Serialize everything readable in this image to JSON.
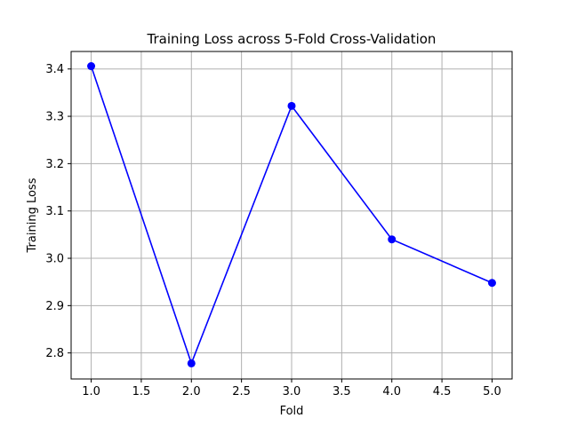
{
  "chart_data": {
    "type": "line",
    "title": "Training Loss across 5-Fold Cross-Validation",
    "xlabel": "Fold",
    "ylabel": "Training Loss",
    "xlim": [
      0.8,
      5.2
    ],
    "ylim": [
      2.745,
      3.437
    ],
    "xticks": [
      1.0,
      1.5,
      2.0,
      2.5,
      3.0,
      3.5,
      4.0,
      4.5,
      5.0
    ],
    "xtick_labels": [
      "1.0",
      "1.5",
      "2.0",
      "2.5",
      "3.0",
      "3.5",
      "4.0",
      "4.5",
      "5.0"
    ],
    "yticks": [
      2.8,
      2.9,
      3.0,
      3.1,
      3.2,
      3.3,
      3.4
    ],
    "ytick_labels": [
      "2.8",
      "2.9",
      "3.0",
      "3.1",
      "3.2",
      "3.3",
      "3.4"
    ],
    "grid": true,
    "series": [
      {
        "x": [
          1,
          2,
          3,
          4,
          5
        ],
        "values": [
          3.406,
          2.778,
          3.322,
          3.04,
          2.948
        ],
        "color": "#0000ff",
        "marker": "circle"
      }
    ]
  }
}
